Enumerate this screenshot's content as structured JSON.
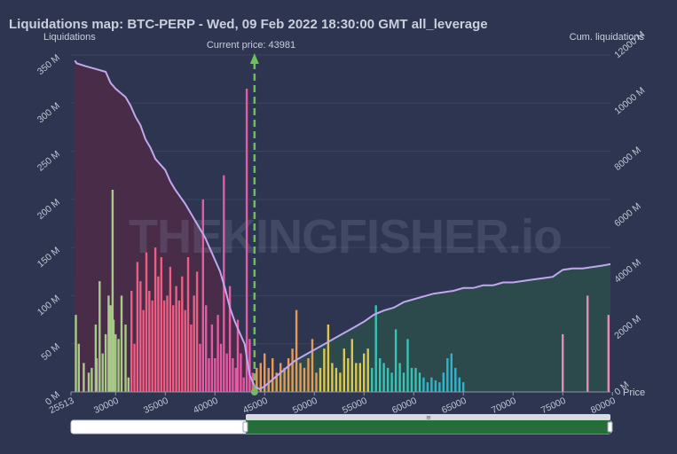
{
  "chart_data": {
    "type": "bar",
    "title": "Liquidations map: BTC-PERP - Wed, 09 Feb 2022 18:30:00 GMT all_leverage",
    "ylabel": "Liquidations",
    "y2label": "Cum. liquidations",
    "xlabel": "Price",
    "current_price_label": "Current price: 43981",
    "current_price": 43981,
    "watermark": "THEKINGFISHER.io",
    "xlim": [
      25513,
      79800
    ],
    "ylim": [
      0,
      350000000
    ],
    "y2lim": [
      0,
      12000000000
    ],
    "x_tick_labels": [
      "25513",
      "30000",
      "35000",
      "40000",
      "45000",
      "50000",
      "55000",
      "60000",
      "65000",
      "70000",
      "75000",
      "80000"
    ],
    "y_tick_labels": [
      "0 M",
      "50 M",
      "100 M",
      "150 M",
      "200 M",
      "250 M",
      "300 M",
      "350 M"
    ],
    "y2_tick_labels": [
      "0 M",
      "2000 M",
      "4000 M",
      "6000 M",
      "8000 M",
      "10000 M",
      "12000 M"
    ],
    "series": [
      {
        "name": "Liquidations",
        "type": "bar",
        "unit": "M",
        "points": [
          [
            26000,
            80
          ],
          [
            26300,
            50
          ],
          [
            26800,
            30
          ],
          [
            27300,
            20
          ],
          [
            27600,
            25
          ],
          [
            28000,
            70
          ],
          [
            28100,
            35
          ],
          [
            28400,
            115
          ],
          [
            28700,
            40
          ],
          [
            29000,
            60
          ],
          [
            29300,
            100
          ],
          [
            29500,
            90
          ],
          [
            29700,
            210
          ],
          [
            29800,
            75
          ],
          [
            30000,
            60
          ],
          [
            30300,
            55
          ],
          [
            30600,
            100
          ],
          [
            31000,
            70
          ],
          [
            31300,
            15
          ],
          [
            31600,
            105
          ],
          [
            31900,
            50
          ],
          [
            32200,
            135
          ],
          [
            32500,
            115
          ],
          [
            32800,
            85
          ],
          [
            33100,
            145
          ],
          [
            33400,
            105
          ],
          [
            33700,
            95
          ],
          [
            34000,
            150
          ],
          [
            34300,
            120
          ],
          [
            34600,
            140
          ],
          [
            34900,
            95
          ],
          [
            35200,
            100
          ],
          [
            35500,
            130
          ],
          [
            35800,
            90
          ],
          [
            36100,
            110
          ],
          [
            36400,
            95
          ],
          [
            36700,
            120
          ],
          [
            37000,
            85
          ],
          [
            37300,
            140
          ],
          [
            37600,
            70
          ],
          [
            37900,
            100
          ],
          [
            38200,
            125
          ],
          [
            38500,
            50
          ],
          [
            38800,
            200
          ],
          [
            39100,
            90
          ],
          [
            39400,
            35
          ],
          [
            39700,
            70
          ],
          [
            40000,
            35
          ],
          [
            40300,
            80
          ],
          [
            40600,
            50
          ],
          [
            40900,
            225
          ],
          [
            41200,
            40
          ],
          [
            41500,
            110
          ],
          [
            41800,
            35
          ],
          [
            42100,
            25
          ],
          [
            42300,
            75
          ],
          [
            42600,
            40
          ],
          [
            42900,
            15
          ],
          [
            43200,
            315
          ],
          [
            43500,
            55
          ],
          [
            43800,
            20
          ],
          [
            44200,
            25
          ],
          [
            44600,
            30
          ],
          [
            45000,
            40
          ],
          [
            45400,
            25
          ],
          [
            45800,
            35
          ],
          [
            46200,
            20
          ],
          [
            46600,
            30
          ],
          [
            47000,
            25
          ],
          [
            47400,
            35
          ],
          [
            47800,
            45
          ],
          [
            48200,
            85
          ],
          [
            48600,
            30
          ],
          [
            49000,
            25
          ],
          [
            49400,
            35
          ],
          [
            49800,
            55
          ],
          [
            50200,
            20
          ],
          [
            50600,
            25
          ],
          [
            51000,
            45
          ],
          [
            51400,
            70
          ],
          [
            51800,
            30
          ],
          [
            52200,
            25
          ],
          [
            52600,
            20
          ],
          [
            53000,
            45
          ],
          [
            53400,
            35
          ],
          [
            53800,
            55
          ],
          [
            54200,
            30
          ],
          [
            54600,
            30
          ],
          [
            55000,
            40
          ],
          [
            55400,
            45
          ],
          [
            55800,
            25
          ],
          [
            56200,
            90
          ],
          [
            56600,
            35
          ],
          [
            57000,
            30
          ],
          [
            57400,
            25
          ],
          [
            57800,
            20
          ],
          [
            58200,
            65
          ],
          [
            58600,
            30
          ],
          [
            59000,
            20
          ],
          [
            59400,
            55
          ],
          [
            59800,
            25
          ],
          [
            60200,
            25
          ],
          [
            60600,
            20
          ],
          [
            61000,
            15
          ],
          [
            61400,
            10
          ],
          [
            61800,
            15
          ],
          [
            62200,
            12
          ],
          [
            62600,
            10
          ],
          [
            63000,
            20
          ],
          [
            63400,
            35
          ],
          [
            63800,
            40
          ],
          [
            64200,
            25
          ],
          [
            64600,
            15
          ],
          [
            65000,
            10
          ],
          [
            75000,
            60
          ],
          [
            77500,
            100
          ],
          [
            79600,
            80
          ]
        ]
      },
      {
        "name": "Cum. liquidations",
        "type": "line",
        "unit": "M",
        "points": [
          [
            25900,
            11800
          ],
          [
            26100,
            11700
          ],
          [
            27000,
            11600
          ],
          [
            28000,
            11500
          ],
          [
            29000,
            11400
          ],
          [
            29500,
            11000
          ],
          [
            30000,
            10800
          ],
          [
            31000,
            10500
          ],
          [
            31500,
            10200
          ],
          [
            32000,
            9800
          ],
          [
            32500,
            9500
          ],
          [
            33000,
            9000
          ],
          [
            33500,
            8700
          ],
          [
            34000,
            8300
          ],
          [
            35000,
            7900
          ],
          [
            35500,
            7500
          ],
          [
            36000,
            7200
          ],
          [
            37000,
            6700
          ],
          [
            38000,
            6100
          ],
          [
            39000,
            5500
          ],
          [
            40000,
            4700
          ],
          [
            40500,
            4300
          ],
          [
            41000,
            3700
          ],
          [
            41500,
            3000
          ],
          [
            42000,
            2500
          ],
          [
            42500,
            2100
          ],
          [
            43000,
            1700
          ],
          [
            43500,
            600
          ],
          [
            44000,
            200
          ],
          [
            44500,
            100
          ],
          [
            45000,
            200
          ],
          [
            46000,
            500
          ],
          [
            47000,
            800
          ],
          [
            48000,
            1100
          ],
          [
            49000,
            1300
          ],
          [
            50000,
            1500
          ],
          [
            51000,
            1700
          ],
          [
            52000,
            1900
          ],
          [
            53000,
            2100
          ],
          [
            54000,
            2300
          ],
          [
            55000,
            2500
          ],
          [
            56000,
            2750
          ],
          [
            57000,
            2900
          ],
          [
            58000,
            3000
          ],
          [
            59000,
            3200
          ],
          [
            60000,
            3300
          ],
          [
            61000,
            3400
          ],
          [
            62000,
            3500
          ],
          [
            63000,
            3550
          ],
          [
            64000,
            3600
          ],
          [
            65000,
            3700
          ],
          [
            66000,
            3700
          ],
          [
            67000,
            3800
          ],
          [
            68000,
            3800
          ],
          [
            69000,
            3900
          ],
          [
            70000,
            3900
          ],
          [
            71000,
            3950
          ],
          [
            72000,
            4000
          ],
          [
            73000,
            4050
          ],
          [
            74000,
            4100
          ],
          [
            75000,
            4350
          ],
          [
            76000,
            4400
          ],
          [
            77000,
            4400
          ],
          [
            78000,
            4450
          ],
          [
            79000,
            4500
          ],
          [
            79800,
            4550
          ]
        ]
      }
    ],
    "grid": true
  },
  "colors": {
    "background": "#2d3550",
    "cum_line": "#c1a8ee",
    "current_price_line": "#6fbf58",
    "cum_area_left": "#4a2c48",
    "cum_area_right": "#2c4b4c",
    "navigator_fill": "#256e3a"
  },
  "navigator": {
    "grip_label": "≡"
  }
}
